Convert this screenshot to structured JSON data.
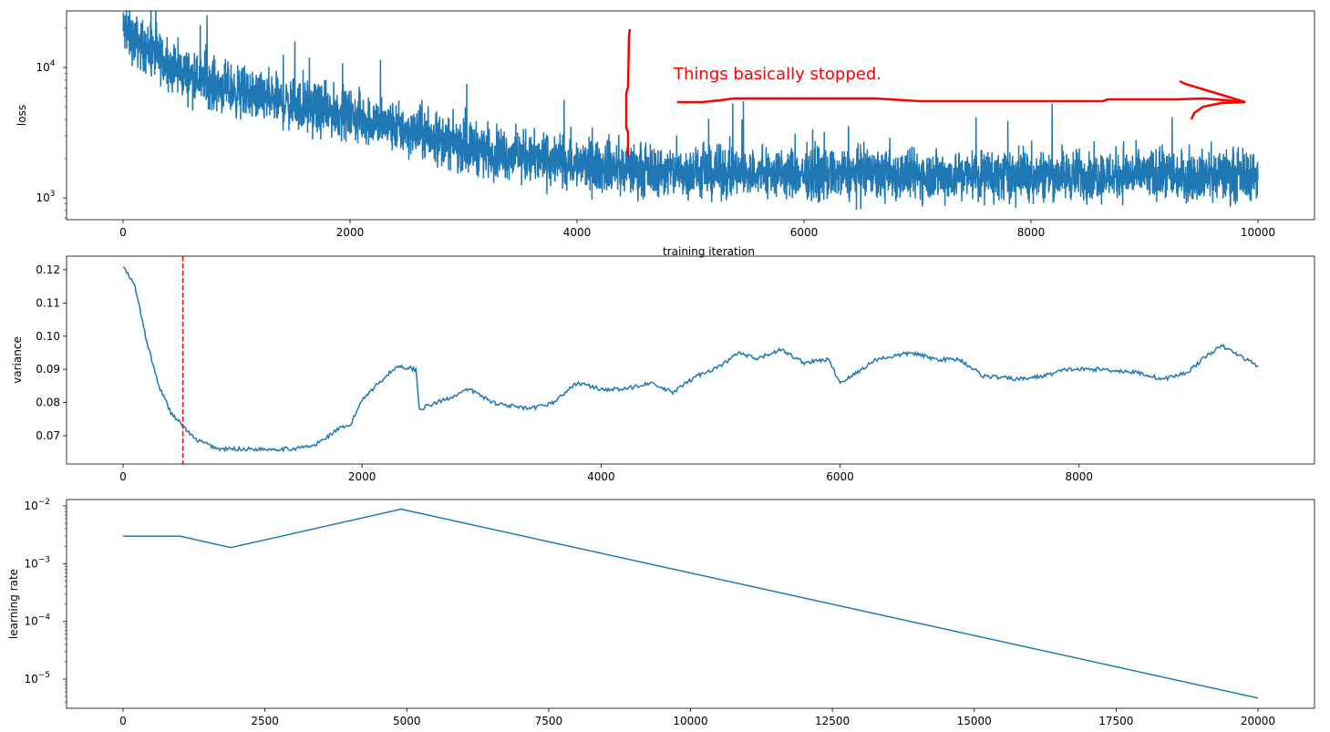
{
  "colors": {
    "line": "#1f77b4",
    "annotation": "#ff0000",
    "axis": "#000000"
  },
  "annotation_text": "Things basically stopped.",
  "chart_data": [
    {
      "type": "line",
      "name": "loss",
      "xlabel": "training iteration",
      "ylabel": "loss",
      "yscale": "log",
      "xlim": [
        -498,
        10498
      ],
      "ylim": [
        680,
        27200
      ],
      "xticks": [
        0,
        2000,
        4000,
        6000,
        8000,
        10000
      ],
      "xtick_labels": [
        "0",
        "2000",
        "4000",
        "6000",
        "8000",
        "10000"
      ],
      "yticks": [
        1000,
        10000
      ],
      "ytick_labels": [
        [
          "10",
          "3"
        ],
        [
          "10",
          "4"
        ]
      ],
      "trend": {
        "x": [
          0,
          250,
          500,
          1000,
          1500,
          2000,
          2500,
          3000,
          3500,
          4000,
          4500,
          5000,
          6000,
          7000,
          8000,
          9000,
          10000
        ],
        "y": [
          19000,
          13000,
          9200,
          6500,
          5200,
          4300,
          3300,
          2500,
          2100,
          1800,
          1650,
          1550,
          1520,
          1500,
          1500,
          1500,
          1500
        ]
      },
      "noise_relative": 0.22
    },
    {
      "type": "line",
      "name": "variance",
      "xlabel": "",
      "ylabel": "variance",
      "xlim": [
        -473,
        9970
      ],
      "ylim": [
        0.0615,
        0.1241
      ],
      "xticks": [
        0,
        2000,
        4000,
        6000,
        8000
      ],
      "xtick_labels": [
        "0",
        "2000",
        "4000",
        "6000",
        "8000"
      ],
      "yticks": [
        0.07,
        0.08,
        0.09,
        0.1,
        0.11,
        0.12
      ],
      "ytick_labels": [
        "0.07",
        "0.08",
        "0.09",
        "0.10",
        "0.11",
        "0.12"
      ],
      "vline": {
        "x": 500,
        "style": "dashed",
        "color": "#ff0000"
      },
      "x": [
        0,
        100,
        200,
        300,
        400,
        500,
        600,
        800,
        1000,
        1200,
        1400,
        1600,
        1800,
        1900,
        2000,
        2200,
        2300,
        2450,
        2480,
        2700,
        2900,
        3100,
        3400,
        3600,
        3800,
        4000,
        4200,
        4400,
        4600,
        4800,
        5000,
        5150,
        5300,
        5500,
        5700,
        5900,
        6000,
        6100,
        6300,
        6600,
        6800,
        7000,
        7200,
        7500,
        7700,
        7900,
        8200,
        8500,
        8700,
        8900,
        9100,
        9200,
        9400,
        9500
      ],
      "y": [
        0.121,
        0.115,
        0.098,
        0.085,
        0.077,
        0.073,
        0.069,
        0.066,
        0.066,
        0.066,
        0.066,
        0.067,
        0.072,
        0.073,
        0.081,
        0.088,
        0.091,
        0.09,
        0.078,
        0.081,
        0.084,
        0.08,
        0.078,
        0.08,
        0.086,
        0.084,
        0.084,
        0.086,
        0.083,
        0.088,
        0.091,
        0.095,
        0.093,
        0.096,
        0.092,
        0.093,
        0.086,
        0.088,
        0.093,
        0.095,
        0.093,
        0.093,
        0.088,
        0.087,
        0.088,
        0.09,
        0.09,
        0.089,
        0.087,
        0.089,
        0.095,
        0.097,
        0.093,
        0.091
      ]
    },
    {
      "type": "line",
      "name": "learning rate",
      "xlabel": "",
      "ylabel": "learning rate",
      "yscale": "log",
      "xlim": [
        -996,
        20996
      ],
      "ylim": [
        3.13e-06,
        0.0129
      ],
      "xticks": [
        0,
        2500,
        5000,
        7500,
        10000,
        12500,
        15000,
        17500,
        20000
      ],
      "xtick_labels": [
        "0",
        "2500",
        "5000",
        "7500",
        "10000",
        "12500",
        "15000",
        "17500",
        "20000"
      ],
      "yticks": [
        1e-05,
        0.0001,
        0.001,
        0.01
      ],
      "ytick_labels": [
        [
          "10",
          "−5"
        ],
        [
          "10",
          "−4"
        ],
        [
          "10",
          "−3"
        ],
        [
          "10",
          "−2"
        ]
      ],
      "x": [
        0,
        1000,
        1900,
        4900,
        20000
      ],
      "y": [
        0.003,
        0.003,
        0.0019,
        0.0088,
        4.7e-06
      ]
    }
  ]
}
